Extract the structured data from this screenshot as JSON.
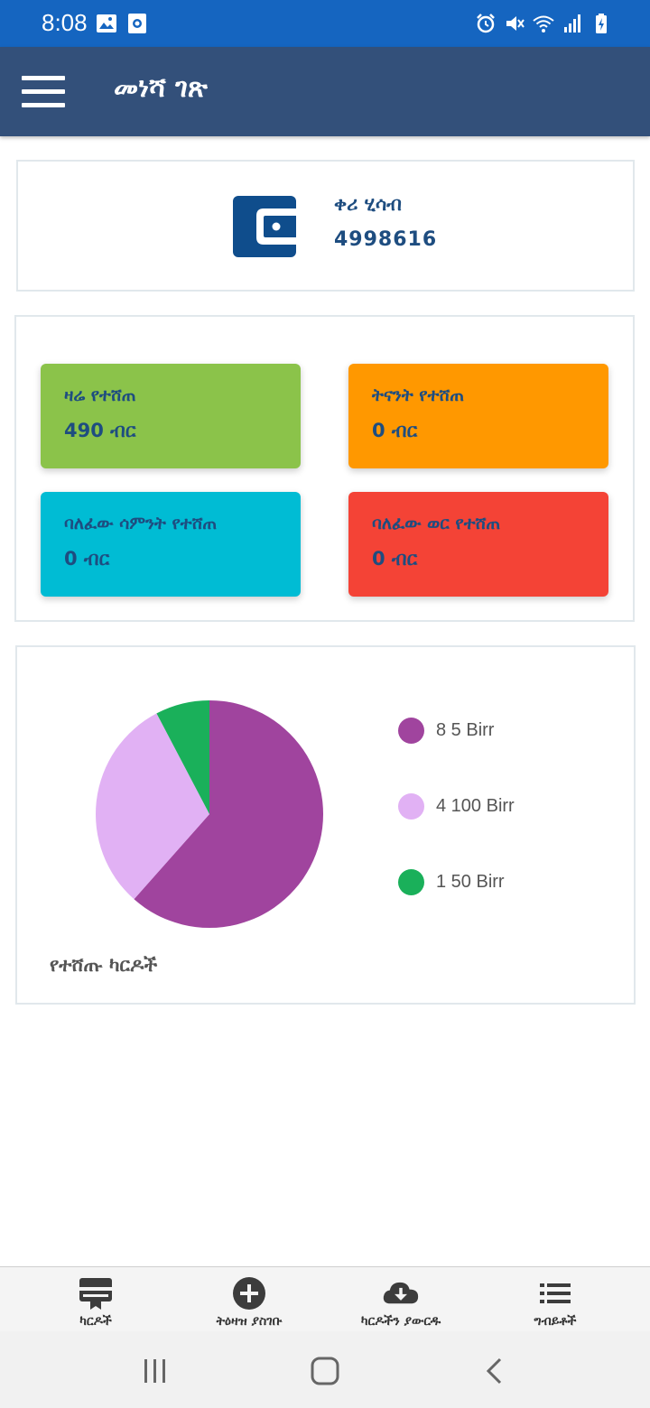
{
  "status_bar": {
    "time": "8:08",
    "left_icons": [
      "image-icon",
      "screen-record-icon"
    ],
    "right_icons": [
      "alarm-icon",
      "mute-icon",
      "wifi-icon",
      "signal-icon",
      "battery-charging-icon"
    ]
  },
  "app_bar": {
    "title": "መነሻ ገጽ"
  },
  "balance": {
    "label": "ቀሪ ሂሳብ",
    "value": "4998616",
    "icon": "wallet-icon"
  },
  "sales": {
    "today": {
      "label": "ዛሬ የተሸጠ",
      "value": "490 ብር",
      "color": "#8bc34a"
    },
    "yesterday": {
      "label": "ትናንት የተሸጠ",
      "value": "0 ብር",
      "color": "#ff9800"
    },
    "last_week": {
      "label": "ባለፈው ሳምንት የተሸጠ",
      "value": "0 ብር",
      "color": "#00bcd4"
    },
    "last_month": {
      "label": "ባለፈው ወር የተሸጠ",
      "value": "0 ብር",
      "color": "#f44336"
    }
  },
  "chart_data": {
    "type": "pie",
    "caption": "የተሸጡ ካርዶች",
    "slices": [
      {
        "label": "8 5 Birr",
        "value": 8,
        "color": "#a0449e"
      },
      {
        "label": "4 100 Birr",
        "value": 4,
        "color": "#e1b1f4"
      },
      {
        "label": "1 50 Birr",
        "value": 1,
        "color": "#1ab05a"
      }
    ],
    "legend_position": "right"
  },
  "bottom_nav": [
    {
      "label": "ካርዶች",
      "icon": "card-icon"
    },
    {
      "label": "ትዕዛዝ ያስገቡ",
      "icon": "add-circle-icon"
    },
    {
      "label": "ካርዶችን ያውርዱ",
      "icon": "cloud-download-icon"
    },
    {
      "label": "ግብይቶች",
      "icon": "list-icon"
    }
  ],
  "system_nav": {
    "icons": [
      "recent-apps-icon",
      "home-icon",
      "back-icon"
    ]
  }
}
